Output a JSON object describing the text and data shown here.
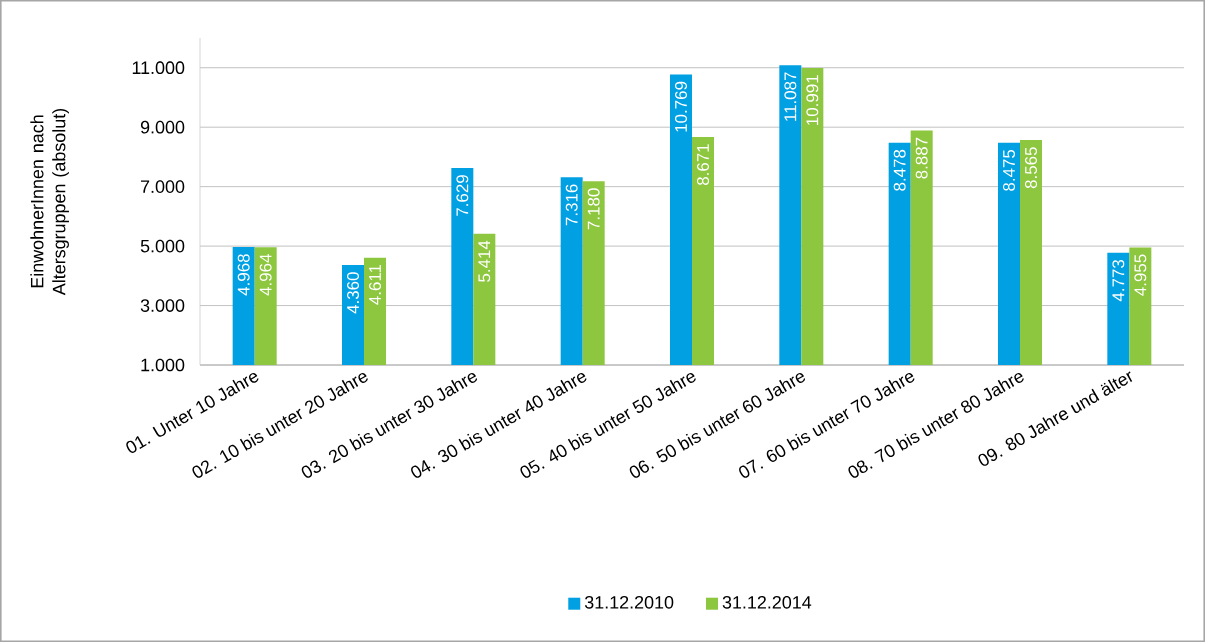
{
  "chart_data": {
    "type": "bar",
    "ylabel": "EinwohnerInnen nach Altersgruppen (absolut)",
    "categories": [
      "01. Unter 10 Jahre",
      "02. 10 bis unter 20 Jahre",
      "03. 20 bis unter 30 Jahre",
      "04. 30 bis unter 40 Jahre",
      "05. 40 bis unter 50 Jahre",
      "06. 50 bis unter 60 Jahre",
      "07. 60 bis unter 70 Jahre",
      "08. 70 bis unter 80 Jahre",
      "09. 80 Jahre und älter"
    ],
    "series": [
      {
        "name": "31.12.2010",
        "color": "#00a0e3",
        "values": [
          4968,
          4360,
          7629,
          7316,
          10769,
          11087,
          8478,
          8475,
          4773
        ],
        "value_labels": [
          "4.968",
          "4.360",
          "7.629",
          "7.316",
          "10.769",
          "11.087",
          "8.478",
          "8.475",
          "4.773"
        ]
      },
      {
        "name": "31.12.2014",
        "color": "#8dc63f",
        "values": [
          4964,
          4611,
          5414,
          7180,
          8671,
          10991,
          8887,
          8565,
          4955
        ],
        "value_labels": [
          "4.964",
          "4.611",
          "5.414",
          "7.180",
          "8.671",
          "10.991",
          "8.887",
          "8.565",
          "4.955"
        ]
      }
    ],
    "ylim": [
      1000,
      12000
    ],
    "yticks": [
      {
        "value": 1000,
        "label": "1.000"
      },
      {
        "value": 3000,
        "label": "3.000"
      },
      {
        "value": 5000,
        "label": "5.000"
      },
      {
        "value": 7000,
        "label": "7.000"
      },
      {
        "value": 9000,
        "label": "9.000"
      },
      {
        "value": 11000,
        "label": "11.000"
      }
    ],
    "grid": "y",
    "legend": "bottom"
  }
}
